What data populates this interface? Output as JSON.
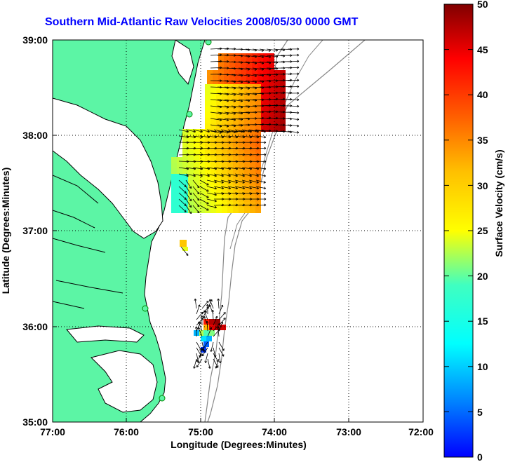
{
  "title": "Southern Mid-Atlantic Raw Velocities 2008/05/30 0000 GMT",
  "map": {
    "xlabel": "Longitude (Degrees:Minutes)",
    "ylabel": "Latitude (Degrees:Minutes)",
    "x_ticks": [
      "77:00",
      "76:00",
      "75:00",
      "74:00",
      "73:00",
      "72:00"
    ],
    "y_ticks": [
      "39:00",
      "38:00",
      "37:00",
      "36:00",
      "35:00"
    ],
    "lon_range": [
      -77,
      -72
    ],
    "lat_range": [
      35,
      39
    ],
    "land_color": "#5cf5a5",
    "grid": "dotted"
  },
  "colorbar": {
    "label": "Surface Velocity (cm/s)",
    "ticks": [
      "50",
      "45",
      "40",
      "35",
      "30",
      "25",
      "20",
      "15",
      "10",
      "5",
      "0"
    ],
    "range": [
      0,
      50
    ],
    "colormap": "jet"
  }
}
